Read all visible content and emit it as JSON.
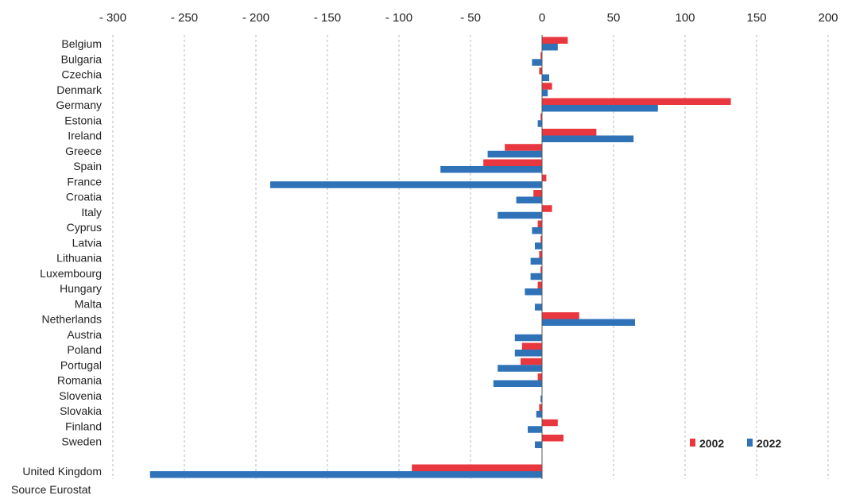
{
  "chart_data": {
    "type": "bar",
    "orientation": "horizontal",
    "categories": [
      "Belgium",
      "Bulgaria",
      "Czechia",
      "Denmark",
      "Germany",
      "Estonia",
      "Ireland",
      "Greece",
      "Spain",
      "France",
      "Croatia",
      "Italy",
      "Cyprus",
      "Latvia",
      "Lithuania",
      "Luxembourg",
      "Hungary",
      "Malta",
      "Netherlands",
      "Austria",
      "Poland",
      "Portugal",
      "Romania",
      "Slovenia",
      "Slovakia",
      "Finland",
      "Sweden",
      "United Kingdom"
    ],
    "series": [
      {
        "name": "2002",
        "color": "#e8373f",
        "values": [
          18,
          -1,
          -2,
          7,
          132,
          -1,
          38,
          -26,
          -41,
          3,
          -6,
          7,
          -3,
          -1,
          -2,
          -1,
          -3,
          0,
          26,
          0,
          -14,
          -15,
          -3,
          0,
          -2,
          11,
          15,
          -91
        ]
      },
      {
        "name": "2022",
        "color": "#2f72b8",
        "values": [
          11,
          -7,
          5,
          4,
          81,
          -3,
          64,
          -38,
          -71,
          -190,
          -18,
          -31,
          -7,
          -5,
          -8,
          -8,
          -12,
          -5,
          65,
          -19,
          -19,
          -31,
          -34,
          -1,
          -4,
          -10,
          -5,
          -274
        ]
      }
    ],
    "xlim": [
      -300,
      200
    ],
    "xticks": [
      -300,
      -250,
      -200,
      -150,
      -100,
      -50,
      0,
      50,
      100,
      150,
      200
    ],
    "tick_labels": [
      "- 300",
      "- 250",
      "- 200",
      "- 150",
      "- 100",
      "- 50",
      "0",
      "50",
      "100",
      "150",
      "200"
    ],
    "grid": true,
    "legend_position": "bottom-right"
  },
  "source": "Source Eurostat"
}
